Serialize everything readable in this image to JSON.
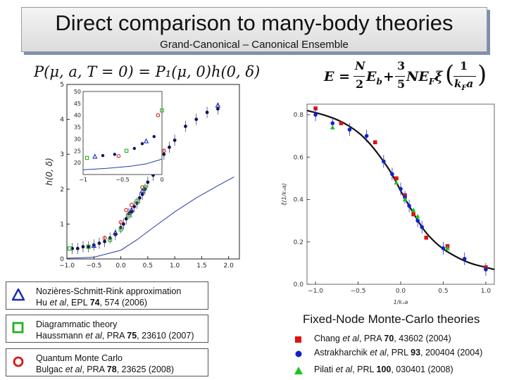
{
  "slide": {
    "title": "Direct comparison to many-body theories",
    "subtitle": "Grand-Canonical – Canonical Ensemble"
  },
  "equations": {
    "left": "P(μ, a, T = 0) = P₁(μ, 0)h(0, δ)",
    "right_lhs": "E = ",
    "right_frac1_num": "N",
    "right_frac1_den": "2",
    "right_mid": "E",
    "right_mid_sub": "b",
    "right_plus": " + ",
    "right_frac2_num": "3",
    "right_frac2_den": "5",
    "right_tail": "NE",
    "right_tail_sub": "F",
    "right_xi": "ξ",
    "right_frac3_num": "1",
    "right_frac3_den": "k",
    "right_frac3_den_sub": "F",
    "right_frac3_den_tail": "a"
  },
  "legend_left": [
    {
      "marker": "triangle",
      "color": "#1a2fb0",
      "line1": "Nozières-Schmitt-Rink approximation",
      "line2_plain1": "Hu ",
      "line2_italic": "et al",
      "line2_plain2": ", EPL ",
      "line2_bold": "74",
      "line2_end": ", 574 (2006)"
    },
    {
      "marker": "square",
      "color": "#22b022",
      "line1": "Diagrammatic theory",
      "line2_plain1": "Haussmann ",
      "line2_italic": "et al",
      "line2_plain2": ", PRA ",
      "line2_bold": "75",
      "line2_end": ", 23610 (2007)"
    },
    {
      "marker": "circle",
      "color": "#d81818",
      "line1": "Quantum Monte Carlo",
      "line2_plain1": "Bulgac ",
      "line2_italic": "et al",
      "line2_plain2": ", PRA ",
      "line2_bold": "78",
      "line2_end": ", 23625 (2008)"
    }
  ],
  "legend_right": {
    "title": "Fixed-Node Monte-Carlo theories",
    "items": [
      {
        "marker": "square",
        "color": "#e01010",
        "plain1": "Chang ",
        "italic": "et al",
        "plain2": ", PRA ",
        "bold": "70",
        "end": ", 43602 (2004)"
      },
      {
        "marker": "circle",
        "color": "#1020d0",
        "plain1": "Astrakharchik ",
        "italic": "et al",
        "plain2": ", PRL ",
        "bold": "93",
        "end": ", 200404 (2004)"
      },
      {
        "marker": "triangle",
        "color": "#20c020",
        "plain1": "Pilati ",
        "italic": "et al",
        "plain2": ", PRL ",
        "bold": "100",
        "end": ", 030401 (2008)"
      }
    ]
  },
  "chart_data": [
    {
      "type": "scatter",
      "title": "",
      "xlabel": "",
      "ylabel": "h(0, δ)",
      "xlim": [
        -1.0,
        2.2
      ],
      "ylim": [
        0,
        5
      ],
      "x_ticks": [
        "−1.0",
        "−0.5",
        "0.0",
        "0.5",
        "1.0",
        "1.5",
        "2.0"
      ],
      "y_ticks": [
        "0",
        "1",
        "2",
        "3",
        "4",
        "5"
      ],
      "series": [
        {
          "marker": "circle-filled",
          "color": "#101060",
          "points": [
            [
              -0.9,
              0.3
            ],
            [
              -0.8,
              0.3
            ],
            [
              -0.7,
              0.35
            ],
            [
              -0.6,
              0.35
            ],
            [
              -0.5,
              0.4
            ],
            [
              -0.4,
              0.45
            ],
            [
              -0.3,
              0.5
            ],
            [
              -0.2,
              0.6
            ],
            [
              -0.1,
              0.7
            ],
            [
              0.0,
              0.9
            ],
            [
              0.05,
              1.0
            ],
            [
              0.1,
              1.15
            ],
            [
              0.15,
              1.3
            ],
            [
              0.2,
              1.35
            ],
            [
              0.25,
              1.5
            ],
            [
              0.3,
              1.6
            ],
            [
              0.35,
              1.75
            ],
            [
              0.4,
              1.85
            ],
            [
              0.45,
              2.0
            ],
            [
              0.5,
              2.2
            ],
            [
              0.6,
              2.4
            ],
            [
              0.7,
              2.7
            ],
            [
              0.8,
              3.0
            ],
            [
              0.9,
              3.2
            ],
            [
              1.0,
              3.4
            ],
            [
              1.2,
              3.8
            ],
            [
              1.4,
              4.0
            ],
            [
              1.6,
              4.2
            ],
            [
              1.8,
              4.3
            ]
          ]
        },
        {
          "marker": "circle-open",
          "color": "#d81818",
          "points": [
            [
              -0.3,
              0.6
            ],
            [
              0.0,
              1.05
            ],
            [
              0.1,
              1.4
            ],
            [
              0.2,
              1.55
            ],
            [
              0.4,
              2.05
            ],
            [
              0.6,
              2.6
            ],
            [
              0.8,
              3.1
            ]
          ]
        },
        {
          "marker": "square-open",
          "color": "#22b022",
          "points": [
            [
              -0.95,
              0.3
            ],
            [
              -0.6,
              0.35
            ],
            [
              -0.2,
              0.55
            ],
            [
              0.0,
              0.85
            ],
            [
              0.15,
              1.25
            ],
            [
              0.3,
              1.65
            ],
            [
              0.45,
              2.05
            ]
          ]
        },
        {
          "marker": "triangle-open",
          "color": "#1a2fb0",
          "points": [
            [
              -0.5,
              0.38
            ],
            [
              -0.1,
              0.75
            ],
            [
              0.2,
              1.4
            ],
            [
              0.4,
              1.95
            ],
            [
              0.6,
              2.5
            ],
            [
              1.8,
              4.4
            ]
          ]
        }
      ],
      "curves": [
        {
          "name": "",
          "color": "#2a3aaa",
          "points": [
            [
              -1.0,
              0.02
            ],
            [
              -0.5,
              0.05
            ],
            [
              0.0,
              0.25
            ],
            [
              0.3,
              0.55
            ],
            [
              0.6,
              0.9
            ],
            [
              1.0,
              1.35
            ],
            [
              1.4,
              1.75
            ],
            [
              1.8,
              2.1
            ],
            [
              2.1,
              2.35
            ]
          ]
        }
      ],
      "inset": {
        "xlim": [
          -1.0,
          0.0
        ],
        "ylim": [
          15,
          50
        ],
        "x_ticks": [
          "−1",
          "−0.5",
          "0"
        ],
        "y_ticks": [
          "20",
          "25",
          "30",
          "35",
          "40",
          "45",
          "50"
        ]
      }
    },
    {
      "type": "line",
      "title": "",
      "xlabel": "1/kₓa",
      "ylabel": "ξ(1/kₓa)",
      "xlim": [
        -1.1,
        1.1
      ],
      "ylim": [
        0,
        0.85
      ],
      "x_ticks": [
        "−1.0",
        "−0.5",
        "0.0",
        "0.5",
        "1.0"
      ],
      "y_ticks": [
        "0.0",
        "0.2",
        "0.4",
        "0.6",
        "0.8"
      ],
      "curve": [
        [
          -1.1,
          0.82
        ],
        [
          -0.9,
          0.8
        ],
        [
          -0.7,
          0.77
        ],
        [
          -0.5,
          0.72
        ],
        [
          -0.35,
          0.66
        ],
        [
          -0.2,
          0.58
        ],
        [
          -0.1,
          0.52
        ],
        [
          0.0,
          0.44
        ],
        [
          0.1,
          0.37
        ],
        [
          0.2,
          0.3
        ],
        [
          0.3,
          0.24
        ],
        [
          0.45,
          0.18
        ],
        [
          0.6,
          0.14
        ],
        [
          0.8,
          0.1
        ],
        [
          1.0,
          0.08
        ],
        [
          1.1,
          0.07
        ]
      ],
      "series": [
        {
          "marker": "square",
          "color": "#e01010",
          "points": [
            [
              -1.0,
              0.83
            ],
            [
              -0.7,
              0.76
            ],
            [
              -0.3,
              0.67
            ],
            [
              -0.05,
              0.5
            ],
            [
              0.05,
              0.42
            ],
            [
              0.15,
              0.33
            ],
            [
              0.3,
              0.22
            ],
            [
              0.55,
              0.18
            ],
            [
              1.0,
              0.08
            ]
          ]
        },
        {
          "marker": "circle",
          "color": "#1020d0",
          "points": [
            [
              -1.0,
              0.8
            ],
            [
              -0.8,
              0.76
            ],
            [
              -0.6,
              0.73
            ],
            [
              -0.4,
              0.7
            ],
            [
              -0.2,
              0.58
            ],
            [
              -0.1,
              0.52
            ],
            [
              0.0,
              0.45
            ],
            [
              0.05,
              0.41
            ],
            [
              0.1,
              0.37
            ],
            [
              0.2,
              0.3
            ],
            [
              0.25,
              0.27
            ],
            [
              0.5,
              0.17
            ],
            [
              0.75,
              0.12
            ],
            [
              1.0,
              0.07
            ]
          ]
        },
        {
          "marker": "triangle",
          "color": "#20c020",
          "points": [
            [
              -0.8,
              0.74
            ],
            [
              -0.05,
              0.48
            ],
            [
              0.05,
              0.4
            ],
            [
              0.15,
              0.35
            ],
            [
              0.2,
              0.32
            ],
            [
              0.55,
              0.17
            ]
          ]
        }
      ]
    }
  ]
}
